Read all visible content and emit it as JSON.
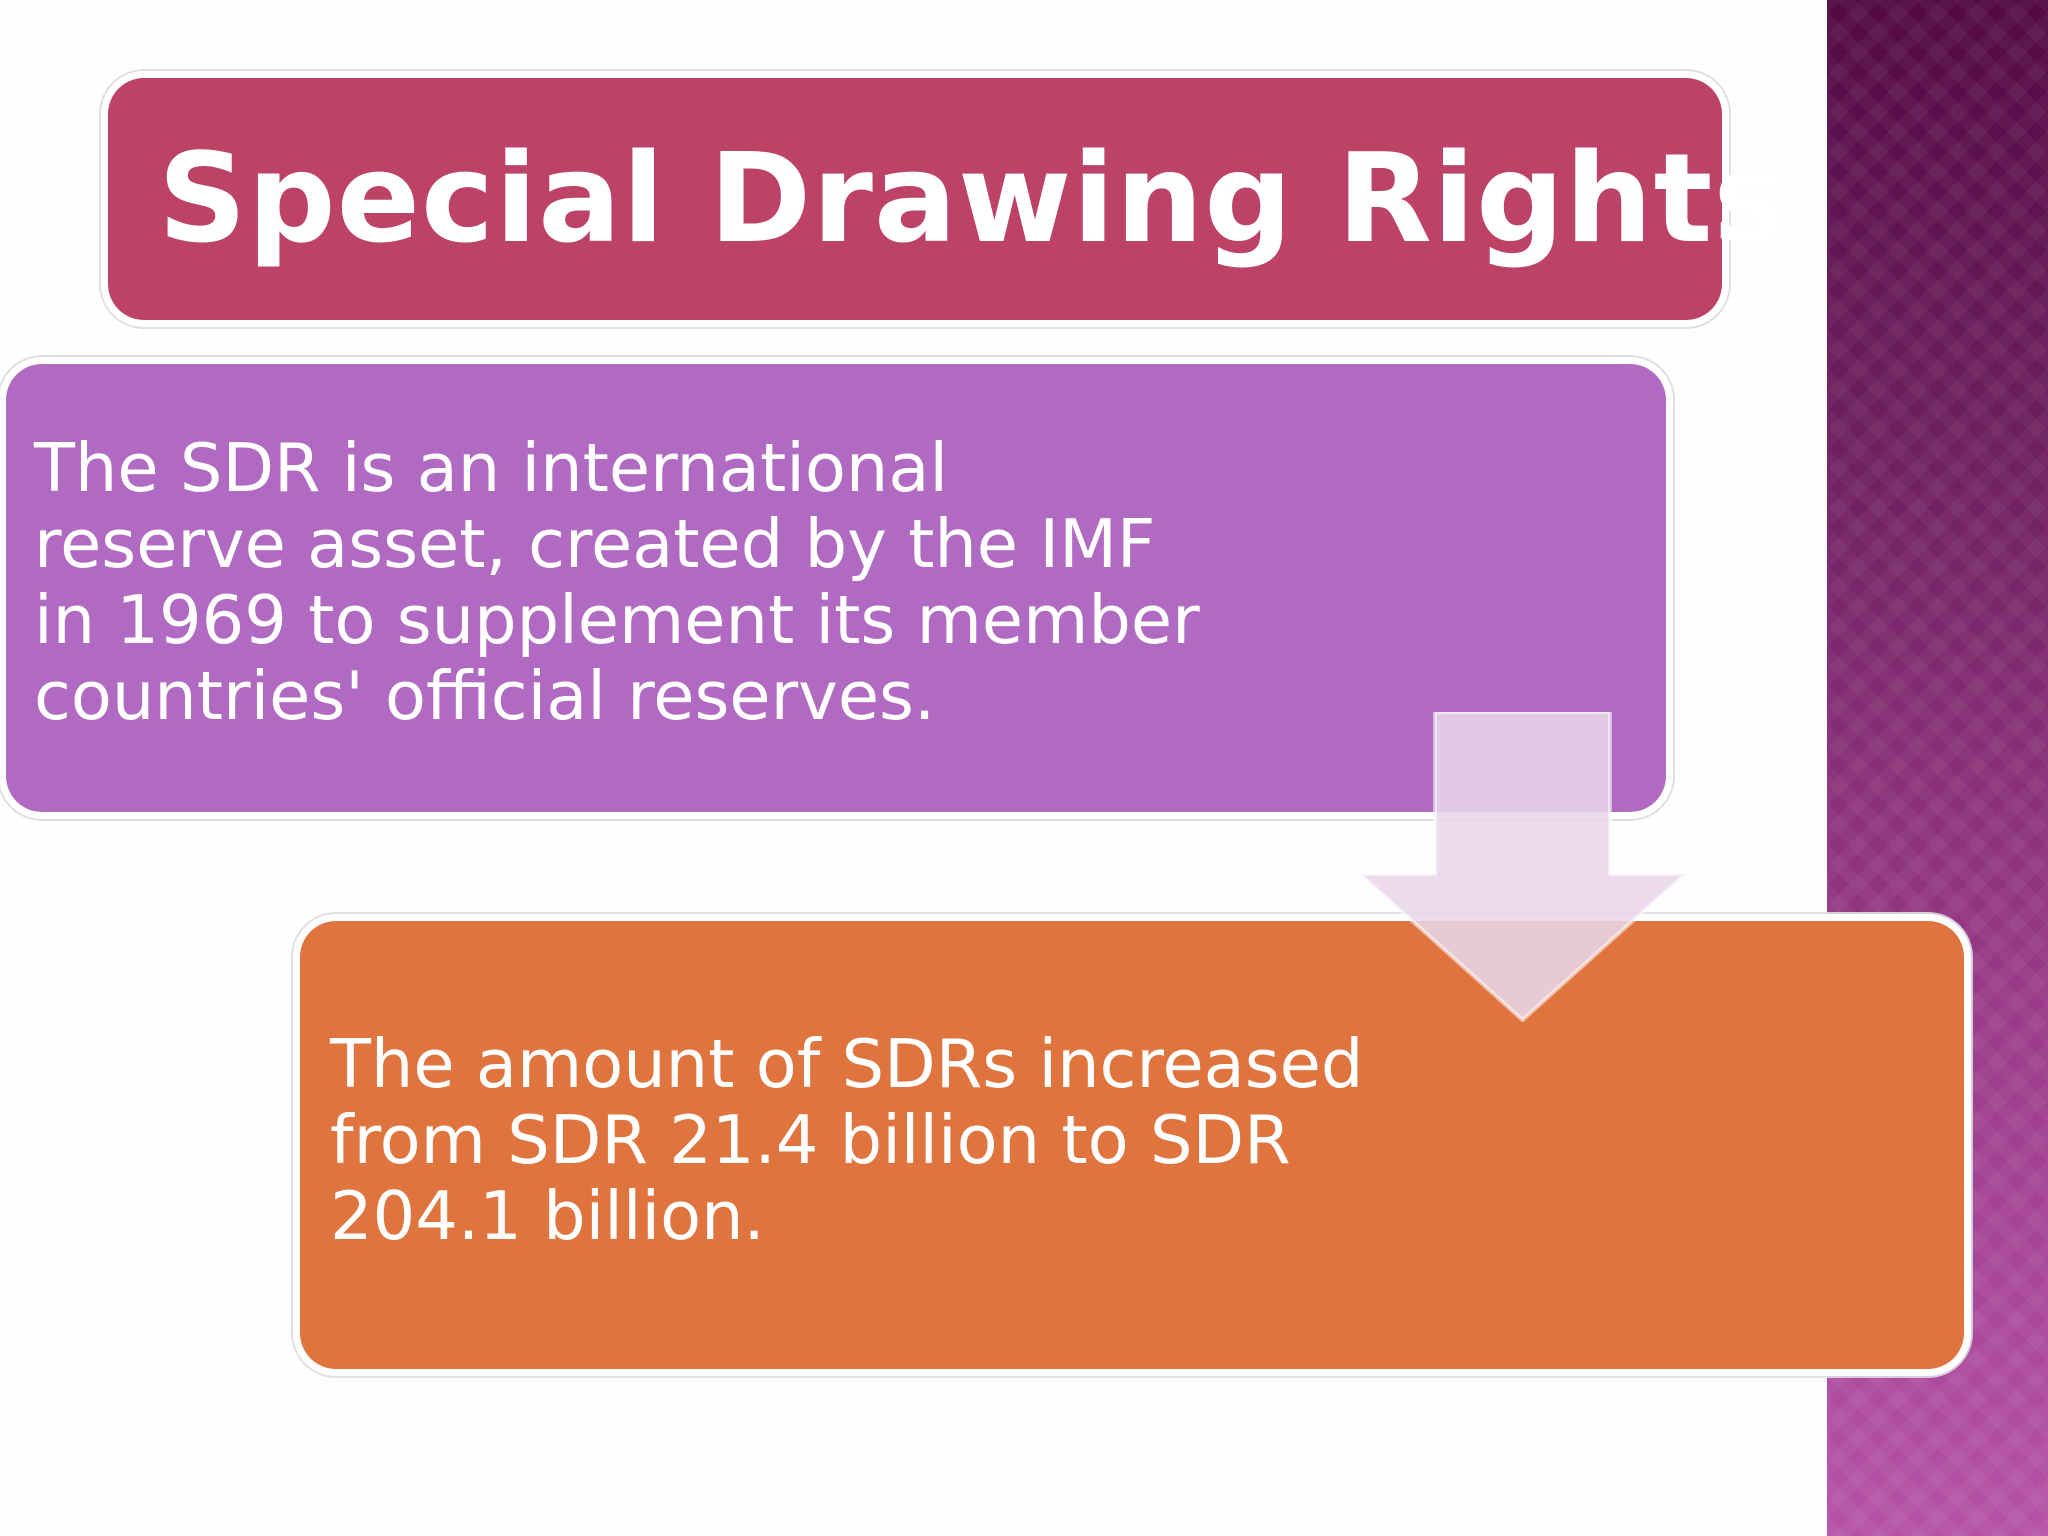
{
  "slide": {
    "title": "Special Drawing Rights"
  },
  "process": {
    "steps": [
      {
        "lines": [
          "The SDR is an international",
          "reserve asset, created by the IMF",
          "in 1969 to supplement its member",
          "countries' official reserves."
        ]
      },
      {
        "lines": [
          "The amount of SDRs increased",
          "from SDR 21.4 billion to SDR",
          "204.1 billion."
        ]
      }
    ]
  },
  "colors": {
    "title_box": "#bc4268",
    "step1_box": "#b16ac2",
    "step2_box": "#e0743e",
    "side_panel": "#7a2a6c",
    "arrow": "#e6d0e8"
  },
  "icons": {
    "connector": "down-arrow-icon"
  }
}
